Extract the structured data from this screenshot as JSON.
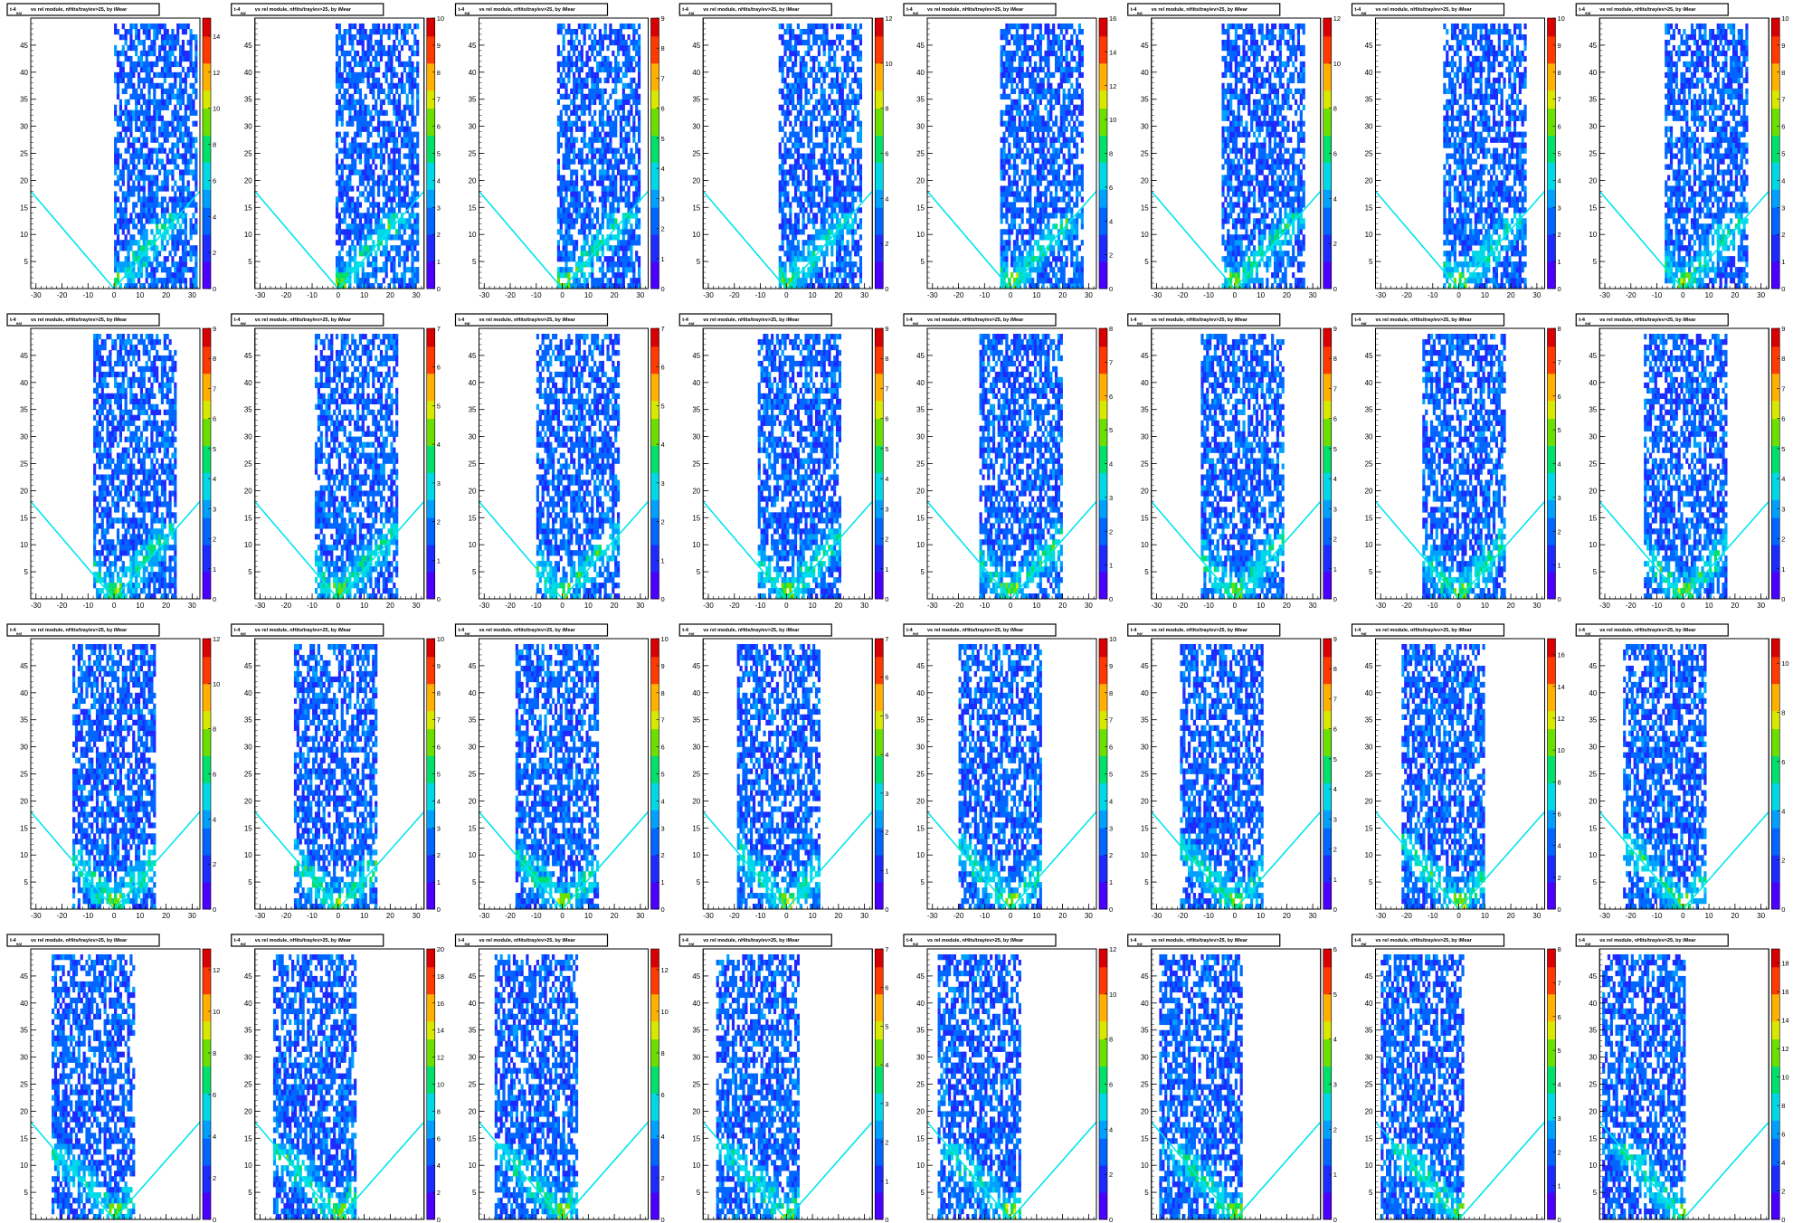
{
  "chart_data": {
    "type": "heatmap",
    "layout": {
      "rows": 4,
      "cols": 8
    },
    "shared": {
      "title_main": "vs rel module, nHits/tray/ev>25, by iMear",
      "title_prefix": "t-4",
      "title_sub": "ear",
      "xlim": [
        -32,
        33
      ],
      "ylim": [
        0,
        50
      ],
      "x_ticks": [
        -30,
        -20,
        -10,
        0,
        10,
        20,
        30
      ],
      "y_ticks": [
        5,
        10,
        15,
        20,
        25,
        30,
        35,
        40,
        45
      ],
      "lines": [
        {
          "x": [
            -32,
            0,
            33
          ],
          "y": [
            18,
            0,
            18
          ],
          "color": "#00e5ee"
        }
      ],
      "palette": [
        "#4b00ff",
        "#1d2bff",
        "#0066ff",
        "#00a0ff",
        "#00d8e8",
        "#00e06a",
        "#6be000",
        "#d8e800",
        "#ffb000",
        "#ff3a00",
        "#d80000"
      ]
    },
    "panels": [
      {
        "x_range": [
          0,
          32
        ],
        "zmax": 15,
        "z_ticks": [
          0,
          2,
          4,
          6,
          8,
          10,
          12,
          14
        ]
      },
      {
        "x_range": [
          -1,
          31
        ],
        "zmax": 10,
        "z_ticks": [
          0,
          1,
          2,
          3,
          4,
          5,
          6,
          7,
          8,
          9,
          10
        ]
      },
      {
        "x_range": [
          -2,
          30
        ],
        "zmax": 9,
        "z_ticks": [
          0,
          1,
          2,
          3,
          4,
          5,
          6,
          7,
          8,
          9
        ]
      },
      {
        "x_range": [
          -3,
          29
        ],
        "zmax": 12,
        "z_ticks": [
          0,
          2,
          4,
          6,
          8,
          10,
          12
        ]
      },
      {
        "x_range": [
          -4,
          28
        ],
        "zmax": 16,
        "z_ticks": [
          0,
          2,
          4,
          6,
          8,
          10,
          12,
          14,
          16
        ]
      },
      {
        "x_range": [
          -5,
          27
        ],
        "zmax": 12,
        "z_ticks": [
          0,
          2,
          4,
          6,
          8,
          10,
          12
        ]
      },
      {
        "x_range": [
          -6,
          26
        ],
        "zmax": 10,
        "z_ticks": [
          0,
          1,
          2,
          3,
          4,
          5,
          6,
          7,
          8,
          9,
          10
        ]
      },
      {
        "x_range": [
          -7,
          25
        ],
        "zmax": 10,
        "z_ticks": [
          0,
          1,
          2,
          3,
          4,
          5,
          6,
          7,
          8,
          9,
          10
        ]
      },
      {
        "x_range": [
          -8,
          24
        ],
        "zmax": 9,
        "z_ticks": [
          0,
          1,
          2,
          3,
          4,
          5,
          6,
          7,
          8,
          9
        ]
      },
      {
        "x_range": [
          -9,
          23
        ],
        "zmax": 7,
        "z_ticks": [
          0,
          1,
          2,
          3,
          4,
          5,
          6,
          7
        ]
      },
      {
        "x_range": [
          -10,
          22
        ],
        "zmax": 7,
        "z_ticks": [
          0,
          1,
          2,
          3,
          4,
          5,
          6,
          7
        ]
      },
      {
        "x_range": [
          -11,
          21
        ],
        "zmax": 9,
        "z_ticks": [
          0,
          1,
          2,
          3,
          4,
          5,
          6,
          7,
          8,
          9
        ]
      },
      {
        "x_range": [
          -12,
          20
        ],
        "zmax": 8,
        "z_ticks": [
          0,
          1,
          2,
          3,
          4,
          5,
          6,
          7,
          8
        ]
      },
      {
        "x_range": [
          -13,
          19
        ],
        "zmax": 9,
        "z_ticks": [
          0,
          1,
          2,
          3,
          4,
          5,
          6,
          7,
          8,
          9
        ]
      },
      {
        "x_range": [
          -14,
          18
        ],
        "zmax": 8,
        "z_ticks": [
          0,
          1,
          2,
          3,
          4,
          5,
          6,
          7,
          8
        ]
      },
      {
        "x_range": [
          -15,
          17
        ],
        "zmax": 9,
        "z_ticks": [
          0,
          1,
          2,
          3,
          4,
          5,
          6,
          7,
          8,
          9
        ]
      },
      {
        "x_range": [
          -16,
          16
        ],
        "zmax": 12,
        "z_ticks": [
          0,
          2,
          4,
          6,
          8,
          10,
          12
        ]
      },
      {
        "x_range": [
          -17,
          15
        ],
        "zmax": 10,
        "z_ticks": [
          0,
          1,
          2,
          3,
          4,
          5,
          6,
          7,
          8,
          9,
          10
        ]
      },
      {
        "x_range": [
          -18,
          14
        ],
        "zmax": 10,
        "z_ticks": [
          0,
          1,
          2,
          3,
          4,
          5,
          6,
          7,
          8,
          9,
          10
        ]
      },
      {
        "x_range": [
          -19,
          13
        ],
        "zmax": 7,
        "z_ticks": [
          0,
          1,
          2,
          3,
          4,
          5,
          6,
          7
        ]
      },
      {
        "x_range": [
          -20,
          12
        ],
        "zmax": 10,
        "z_ticks": [
          0,
          1,
          2,
          3,
          4,
          5,
          6,
          7,
          8,
          9,
          10
        ]
      },
      {
        "x_range": [
          -21,
          11
        ],
        "zmax": 9,
        "z_ticks": [
          0,
          1,
          2,
          3,
          4,
          5,
          6,
          7,
          8,
          9
        ]
      },
      {
        "x_range": [
          -22,
          10
        ],
        "zmax": 17,
        "z_ticks": [
          0,
          2,
          4,
          6,
          8,
          10,
          12,
          14,
          16
        ]
      },
      {
        "x_range": [
          -23,
          9
        ],
        "zmax": 11,
        "z_ticks": [
          0,
          2,
          4,
          6,
          8,
          10
        ]
      },
      {
        "x_range": [
          -24,
          8
        ],
        "zmax": 13,
        "z_ticks": [
          0,
          2,
          4,
          6,
          8,
          10,
          12
        ]
      },
      {
        "x_range": [
          -25,
          7
        ],
        "zmax": 20,
        "z_ticks": [
          0,
          2,
          4,
          6,
          8,
          10,
          12,
          14,
          16,
          18,
          20
        ]
      },
      {
        "x_range": [
          -26,
          6
        ],
        "zmax": 13,
        "z_ticks": [
          0,
          2,
          4,
          6,
          8,
          10,
          12
        ]
      },
      {
        "x_range": [
          -27,
          5
        ],
        "zmax": 7,
        "z_ticks": [
          0,
          1,
          2,
          3,
          4,
          5,
          6,
          7
        ]
      },
      {
        "x_range": [
          -28,
          4
        ],
        "zmax": 12,
        "z_ticks": [
          0,
          2,
          4,
          6,
          8,
          10,
          12
        ]
      },
      {
        "x_range": [
          -29,
          3
        ],
        "zmax": 6,
        "z_ticks": [
          0,
          1,
          2,
          3,
          4,
          5,
          6
        ]
      },
      {
        "x_range": [
          -30,
          2
        ],
        "zmax": 8,
        "z_ticks": [
          0,
          1,
          2,
          3,
          4,
          5,
          6,
          7,
          8
        ]
      },
      {
        "x_range": [
          -31,
          1
        ],
        "zmax": 19,
        "z_ticks": [
          0,
          2,
          4,
          6,
          8,
          10,
          12,
          14,
          16,
          18
        ]
      }
    ]
  }
}
